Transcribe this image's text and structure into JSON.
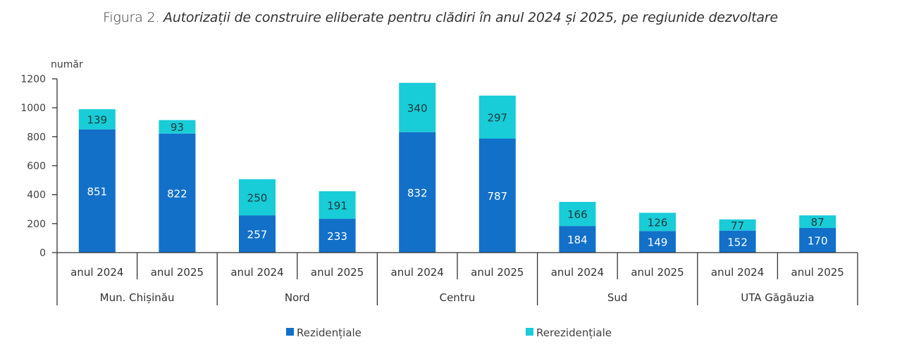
{
  "figure": {
    "number": "Figura 2.",
    "caption": "Autorizații de construire eliberate pentru clădiri în anul 2024 și 2025, pe regiunide dezvoltare"
  },
  "chart_data": {
    "type": "bar",
    "stacked": true,
    "title": "Figura 2. Autorizații de construire eliberate pentru clădiri în anul 2024 și 2025, pe regiunide dezvoltare",
    "xlabel": "",
    "ylabel": "număr",
    "ylim": [
      0,
      1200
    ],
    "yticks": [
      0,
      200,
      400,
      600,
      800,
      1000,
      1200
    ],
    "grid": false,
    "legend_position": "bottom",
    "groups": [
      {
        "label": "Mun. Chișinău",
        "categories": [
          "anul 2024",
          "anul 2025"
        ]
      },
      {
        "label": "Nord",
        "categories": [
          "anul 2024",
          "anul 2025"
        ]
      },
      {
        "label": "Centru",
        "categories": [
          "anul 2024",
          "anul 2025"
        ]
      },
      {
        "label": "Sud",
        "categories": [
          "anul 2024",
          "anul 2025"
        ]
      },
      {
        "label": "UTA Găgăuzia",
        "categories": [
          "anul 2024",
          "anul 2025"
        ]
      }
    ],
    "categories": [
      "anul 2024",
      "anul 2025",
      "anul 2024",
      "anul 2025",
      "anul 2024",
      "anul 2025",
      "anul 2024",
      "anul 2025",
      "anul 2024",
      "anul 2025"
    ],
    "series": [
      {
        "name": "Rezidențiale",
        "color": "#1270C8",
        "label_color": "#ffffff",
        "values": [
          851,
          822,
          257,
          233,
          832,
          787,
          184,
          149,
          152,
          170
        ]
      },
      {
        "name": "Rerezidențiale",
        "color": "#18CCD8",
        "label_color": "#1a3a3a",
        "values": [
          139,
          93,
          250,
          191,
          340,
          297,
          166,
          126,
          77,
          87
        ]
      }
    ]
  }
}
